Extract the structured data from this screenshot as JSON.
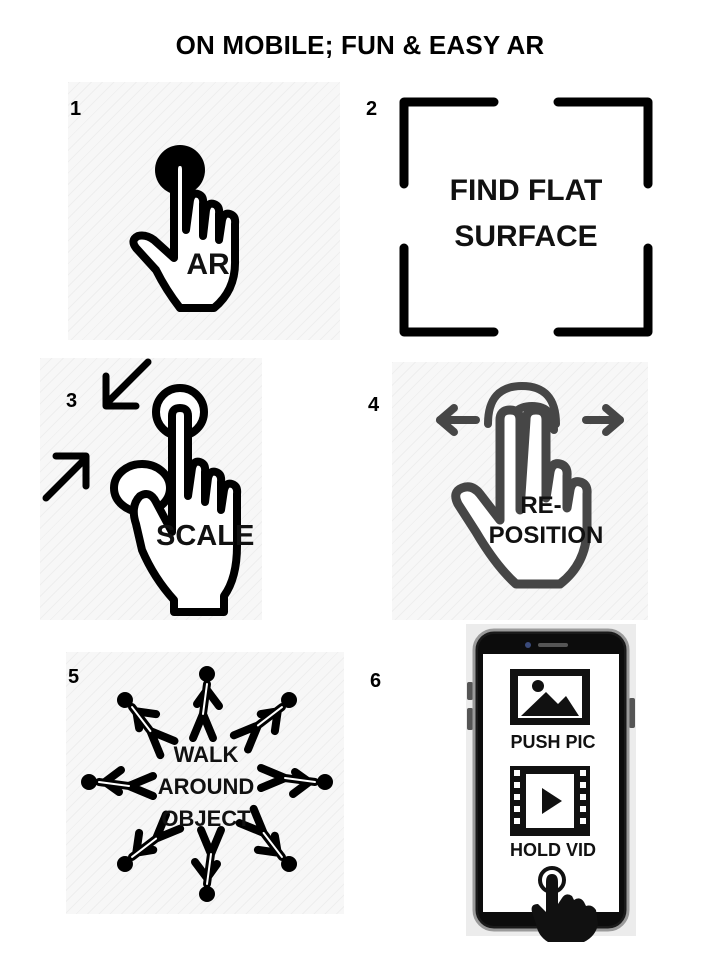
{
  "title": "ON MOBILE; FUN & EASY AR",
  "steps": [
    {
      "number": "1",
      "label": "AR",
      "icon": "tap-finger-icon"
    },
    {
      "number": "2",
      "label_line1": "FIND FLAT",
      "label_line2": "SURFACE",
      "icon": "scan-frame-icon"
    },
    {
      "number": "3",
      "label": "SCALE",
      "icon": "pinch-scale-icon"
    },
    {
      "number": "4",
      "label_line1": "RE-",
      "label_line2": "POSITION",
      "icon": "two-finger-drag-icon"
    },
    {
      "number": "5",
      "label_line1": "WALK",
      "label_line2": "AROUND",
      "label_line3": "OBJECT",
      "icon": "walking-figures-icon"
    },
    {
      "number": "6",
      "label_pic": "PUSH PIC",
      "label_vid": "HOLD VID",
      "icon": "smartphone-icon"
    }
  ]
}
